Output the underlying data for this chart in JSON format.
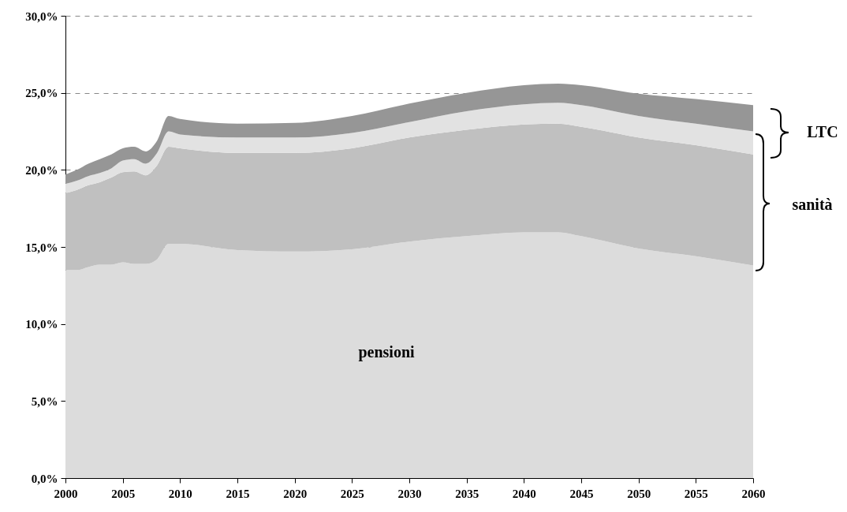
{
  "chart_data": {
    "type": "area",
    "stacked": true,
    "x": [
      2000,
      2001,
      2002,
      2003,
      2004,
      2005,
      2006,
      2007,
      2008,
      2009,
      2010,
      2015,
      2020,
      2025,
      2030,
      2035,
      2040,
      2043,
      2045,
      2050,
      2055,
      2060
    ],
    "series": [
      {
        "color": "#dcdcdc",
        "values": [
          13.5,
          13.5,
          13.7,
          13.85,
          13.85,
          14.0,
          13.9,
          13.9,
          14.2,
          15.2,
          15.2,
          14.8,
          14.7,
          14.85,
          15.35,
          15.7,
          15.95,
          15.95,
          15.7,
          14.9,
          14.4,
          13.8
        ]
      },
      {
        "color": "#c0c0c0",
        "values": [
          5.0,
          5.2,
          5.3,
          5.35,
          5.65,
          5.85,
          6.0,
          5.75,
          6.1,
          6.3,
          6.2,
          6.3,
          6.4,
          6.55,
          6.75,
          6.9,
          7.0,
          7.05,
          7.1,
          7.2,
          7.2,
          7.2
        ]
      },
      {
        "color": "#e2e2e2",
        "values": [
          0.6,
          0.6,
          0.6,
          0.6,
          0.6,
          0.75,
          0.8,
          0.75,
          0.8,
          1.0,
          0.9,
          1.0,
          1.0,
          1.0,
          1.0,
          1.2,
          1.3,
          1.35,
          1.4,
          1.4,
          1.4,
          1.5
        ]
      },
      {
        "color": "#969696",
        "values": [
          0.6,
          0.7,
          0.8,
          0.9,
          0.9,
          0.8,
          0.8,
          0.8,
          0.8,
          1.0,
          1.0,
          0.9,
          0.95,
          1.1,
          1.2,
          1.2,
          1.25,
          1.25,
          1.3,
          1.45,
          1.6,
          1.7
        ]
      }
    ],
    "xlim": [
      2000,
      2060
    ],
    "xticks": [
      2000,
      2005,
      2010,
      2015,
      2020,
      2025,
      2030,
      2035,
      2040,
      2045,
      2050,
      2055,
      2060
    ],
    "ylim": [
      0,
      30
    ],
    "yticks": [
      {
        "value": 0,
        "label": "0,0%"
      },
      {
        "value": 5,
        "label": "5,0%"
      },
      {
        "value": 10,
        "label": "10,0%"
      },
      {
        "value": 15,
        "label": "15,0%"
      },
      {
        "value": 20,
        "label": "20,0%"
      },
      {
        "value": 25,
        "label": "25,0%"
      },
      {
        "value": 30,
        "label": "30,0%"
      }
    ],
    "grid": "y",
    "annotations": [
      "pensioni",
      "LTC",
      "sanità"
    ]
  }
}
